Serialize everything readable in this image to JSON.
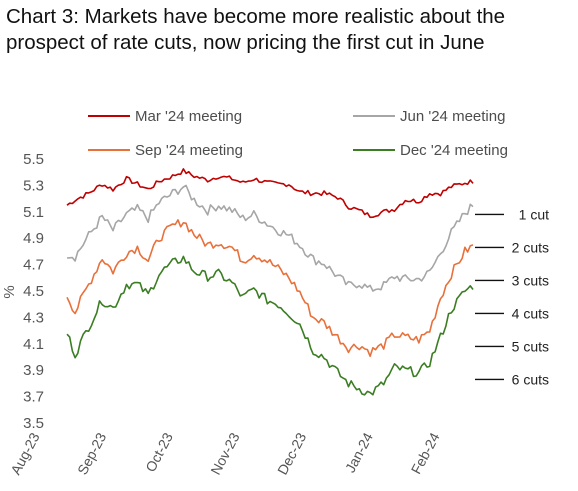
{
  "title": "Chart 3: Markets have become more realistic about the prospect of rate cuts, now pricing the first cut in June",
  "chart_data": {
    "type": "line",
    "ylabel": "%",
    "ylim": [
      3.5,
      5.5
    ],
    "yticks": [
      "5.5",
      "5.3",
      "5.1",
      "4.9",
      "4.7",
      "4.5",
      "4.3",
      "4.1",
      "3.9",
      "3.7",
      "3.5"
    ],
    "xticks": [
      "Aug-23",
      "Sep-23",
      "Oct-23",
      "Nov-23",
      "Dec-23",
      "Jan-24",
      "Feb-24"
    ],
    "legend_position": "top",
    "series": [
      {
        "name": "Mar '24 meeting",
        "color": "#c00000",
        "anchors": [
          [
            0,
            5.15
          ],
          [
            3,
            5.19
          ],
          [
            8,
            5.24
          ],
          [
            13,
            5.31
          ],
          [
            17,
            5.27
          ],
          [
            22,
            5.35
          ],
          [
            26,
            5.31
          ],
          [
            30,
            5.27
          ],
          [
            34,
            5.33
          ],
          [
            39,
            5.37
          ],
          [
            43,
            5.41
          ],
          [
            47,
            5.37
          ],
          [
            52,
            5.34
          ],
          [
            56,
            5.37
          ],
          [
            61,
            5.35
          ],
          [
            65,
            5.32
          ],
          [
            69,
            5.35
          ],
          [
            74,
            5.32
          ],
          [
            78,
            5.31
          ],
          [
            82,
            5.31
          ],
          [
            86,
            5.25
          ],
          [
            91,
            5.24
          ],
          [
            95,
            5.24
          ],
          [
            100,
            5.21
          ],
          [
            104,
            5.14
          ],
          [
            108,
            5.11
          ],
          [
            112,
            5.07
          ],
          [
            117,
            5.1
          ],
          [
            121,
            5.12
          ],
          [
            125,
            5.19
          ],
          [
            130,
            5.18
          ],
          [
            134,
            5.24
          ],
          [
            138,
            5.24
          ],
          [
            142,
            5.29
          ],
          [
            147,
            5.32
          ],
          [
            150,
            5.33
          ]
        ]
      },
      {
        "name": "Jun '24 meeting",
        "color": "#a6a6a6",
        "anchors": [
          [
            0,
            4.78
          ],
          [
            3,
            4.76
          ],
          [
            8,
            4.92
          ],
          [
            13,
            5.06
          ],
          [
            17,
            4.96
          ],
          [
            22,
            5.08
          ],
          [
            26,
            5.12
          ],
          [
            30,
            5.05
          ],
          [
            34,
            5.17
          ],
          [
            39,
            5.24
          ],
          [
            43,
            5.29
          ],
          [
            47,
            5.19
          ],
          [
            52,
            5.11
          ],
          [
            56,
            5.15
          ],
          [
            61,
            5.11
          ],
          [
            65,
            5.05
          ],
          [
            69,
            5.08
          ],
          [
            74,
            5.01
          ],
          [
            78,
            4.96
          ],
          [
            82,
            4.92
          ],
          [
            86,
            4.85
          ],
          [
            91,
            4.74
          ],
          [
            95,
            4.71
          ],
          [
            100,
            4.61
          ],
          [
            104,
            4.54
          ],
          [
            108,
            4.56
          ],
          [
            112,
            4.51
          ],
          [
            117,
            4.54
          ],
          [
            121,
            4.61
          ],
          [
            125,
            4.59
          ],
          [
            130,
            4.59
          ],
          [
            134,
            4.64
          ],
          [
            138,
            4.79
          ],
          [
            142,
            4.94
          ],
          [
            147,
            5.09
          ],
          [
            150,
            5.15
          ]
        ]
      },
      {
        "name": "Sep '24 meeting",
        "color": "#e8703a",
        "anchors": [
          [
            0,
            4.47
          ],
          [
            3,
            4.34
          ],
          [
            8,
            4.55
          ],
          [
            13,
            4.75
          ],
          [
            17,
            4.65
          ],
          [
            22,
            4.79
          ],
          [
            26,
            4.83
          ],
          [
            30,
            4.73
          ],
          [
            34,
            4.9
          ],
          [
            39,
            4.99
          ],
          [
            43,
            5.03
          ],
          [
            47,
            4.93
          ],
          [
            52,
            4.85
          ],
          [
            56,
            4.87
          ],
          [
            61,
            4.83
          ],
          [
            65,
            4.73
          ],
          [
            69,
            4.78
          ],
          [
            74,
            4.73
          ],
          [
            78,
            4.67
          ],
          [
            82,
            4.6
          ],
          [
            86,
            4.49
          ],
          [
            91,
            4.3
          ],
          [
            95,
            4.26
          ],
          [
            100,
            4.15
          ],
          [
            104,
            4.07
          ],
          [
            108,
            4.09
          ],
          [
            112,
            4.04
          ],
          [
            117,
            4.09
          ],
          [
            121,
            4.17
          ],
          [
            125,
            4.15
          ],
          [
            130,
            4.13
          ],
          [
            134,
            4.2
          ],
          [
            138,
            4.45
          ],
          [
            142,
            4.63
          ],
          [
            147,
            4.8
          ],
          [
            150,
            4.84
          ]
        ]
      },
      {
        "name": "Dec '24 meeting",
        "color": "#3a7d22",
        "anchors": [
          [
            0,
            4.18
          ],
          [
            3,
            4.02
          ],
          [
            8,
            4.23
          ],
          [
            13,
            4.43
          ],
          [
            17,
            4.37
          ],
          [
            22,
            4.55
          ],
          [
            26,
            4.55
          ],
          [
            30,
            4.47
          ],
          [
            34,
            4.63
          ],
          [
            39,
            4.71
          ],
          [
            43,
            4.75
          ],
          [
            47,
            4.65
          ],
          [
            52,
            4.61
          ],
          [
            56,
            4.63
          ],
          [
            61,
            4.56
          ],
          [
            65,
            4.45
          ],
          [
            69,
            4.51
          ],
          [
            74,
            4.43
          ],
          [
            78,
            4.4
          ],
          [
            82,
            4.33
          ],
          [
            86,
            4.25
          ],
          [
            91,
            4.05
          ],
          [
            95,
            4.0
          ],
          [
            100,
            3.88
          ],
          [
            104,
            3.8
          ],
          [
            108,
            3.76
          ],
          [
            112,
            3.72
          ],
          [
            117,
            3.8
          ],
          [
            121,
            3.92
          ],
          [
            125,
            3.9
          ],
          [
            130,
            3.88
          ],
          [
            134,
            3.96
          ],
          [
            138,
            4.15
          ],
          [
            142,
            4.36
          ],
          [
            147,
            4.5
          ],
          [
            150,
            4.54
          ]
        ]
      }
    ],
    "annotations": [
      "1 cut",
      "2 cuts",
      "3 cuts",
      "4 cuts",
      "5 cuts",
      "6 cuts"
    ],
    "annotation_levels": [
      5.08,
      4.83,
      4.58,
      4.33,
      4.08,
      3.83
    ]
  }
}
